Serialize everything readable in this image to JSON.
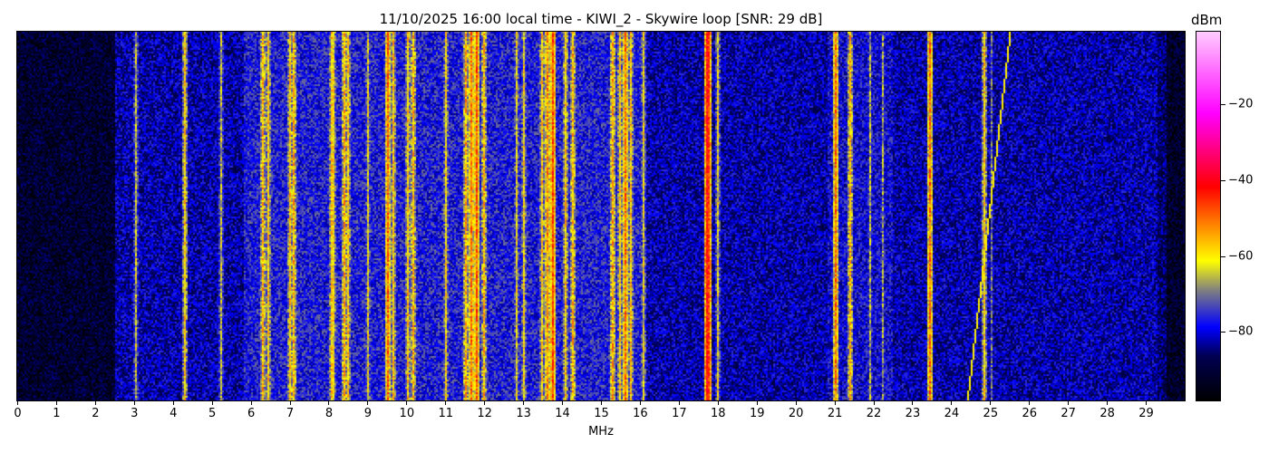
{
  "chart_data": {
    "type": "heatmap",
    "title": "11/10/2025 16:00 local time - KIWI_2 - Skywire loop [SNR: 29 dB]",
    "xlabel": "MHz",
    "xlim": [
      0,
      30
    ],
    "x_ticks": [
      "0",
      "1",
      "2",
      "3",
      "4",
      "5",
      "6",
      "7",
      "8",
      "9",
      "10",
      "11",
      "12",
      "13",
      "14",
      "15",
      "16",
      "17",
      "18",
      "19",
      "20",
      "21",
      "22",
      "23",
      "24",
      "25",
      "26",
      "27",
      "28",
      "29"
    ],
    "colorbar": {
      "label": "dBm",
      "range": [
        -98,
        -1
      ],
      "ticks": [
        "−20",
        "−40",
        "−60",
        "−80"
      ],
      "tick_values": [
        -20,
        -40,
        -60,
        -80
      ],
      "colormap": [
        "#000000",
        "#000050",
        "#0000ff",
        "#808080",
        "#ffff00",
        "#ff8000",
        "#ff0000",
        "#ff00ff",
        "#ffccff"
      ]
    },
    "noise_floor_dbm": -88,
    "signals_mhz_dbm": [
      [
        3.05,
        -64
      ],
      [
        4.3,
        -58
      ],
      [
        5.2,
        -64
      ],
      [
        6.3,
        -56
      ],
      [
        6.45,
        -58
      ],
      [
        7.0,
        -58
      ],
      [
        7.1,
        -56
      ],
      [
        8.05,
        -58
      ],
      [
        8.1,
        -60
      ],
      [
        8.4,
        -55
      ],
      [
        8.5,
        -58
      ],
      [
        9.0,
        -62
      ],
      [
        9.5,
        -50
      ],
      [
        9.65,
        -58
      ],
      [
        10.0,
        -58
      ],
      [
        10.15,
        -56
      ],
      [
        11.0,
        -60
      ],
      [
        11.5,
        -55
      ],
      [
        11.65,
        -50
      ],
      [
        11.8,
        -48
      ],
      [
        11.95,
        -56
      ],
      [
        12.8,
        -62
      ],
      [
        13.0,
        -60
      ],
      [
        13.45,
        -58
      ],
      [
        13.6,
        -52
      ],
      [
        13.75,
        -46
      ],
      [
        14.05,
        -58
      ],
      [
        14.25,
        -56
      ],
      [
        15.3,
        -54
      ],
      [
        15.45,
        -58
      ],
      [
        15.6,
        -50
      ],
      [
        15.75,
        -58
      ],
      [
        16.05,
        -62
      ],
      [
        17.7,
        -42
      ],
      [
        17.75,
        -44
      ],
      [
        18.0,
        -62
      ],
      [
        21.0,
        -50
      ],
      [
        21.4,
        -56
      ],
      [
        21.9,
        -66
      ],
      [
        22.2,
        -68
      ],
      [
        23.45,
        -50
      ],
      [
        24.85,
        -58
      ],
      [
        25.0,
        -70
      ]
    ],
    "sweep_signal_mhz": [
      24.4,
      25.5
    ]
  }
}
